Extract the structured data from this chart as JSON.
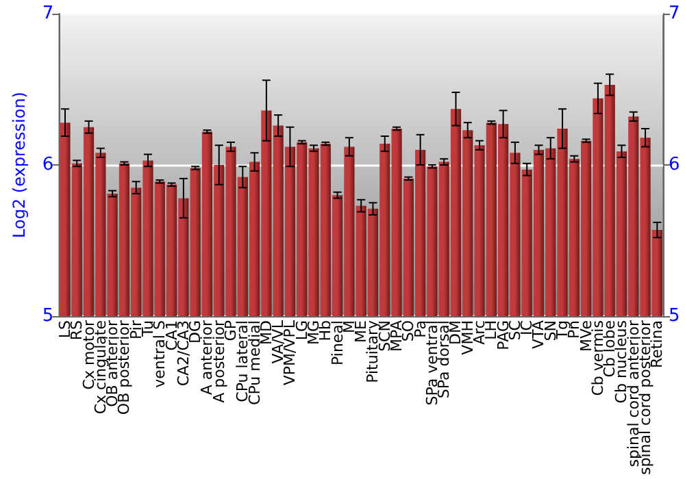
{
  "chart_data": {
    "type": "bar",
    "ylabel": "Log2 (expression)",
    "categories": [
      "LS",
      "RS",
      "Cx motor",
      "Cx cingulate",
      "OB anterior",
      "OB posterior",
      "Pir",
      "Tu",
      "ventral S",
      "CA1",
      "CA2/CA3",
      "DG",
      "A anterior",
      "A posterior",
      "GP",
      "CPu lateral",
      "CPu medial",
      "MD",
      "VA/VL",
      "VPM/VPL",
      "LG",
      "MG",
      "Hb",
      "Pineal",
      "M",
      "ME",
      "Pituitary",
      "SCN",
      "MPA",
      "SO",
      "Pa",
      "SPa ventral",
      "SPa dorsal",
      "DM",
      "VMH",
      "Arc",
      "LH",
      "PAG",
      "SC",
      "IC",
      "VTA",
      "SN",
      "Tg",
      "Pn",
      "MVe",
      "Cb vermis",
      "Cb lobe",
      "Cb nucleus",
      "spinal cord anterior",
      "spinal cord posterior",
      "Retina"
    ],
    "values": [
      6.28,
      6.01,
      6.25,
      6.08,
      5.81,
      6.01,
      5.85,
      6.03,
      5.89,
      5.87,
      5.78,
      5.98,
      6.22,
      6.0,
      6.12,
      5.92,
      6.02,
      6.36,
      6.26,
      6.12,
      6.15,
      6.11,
      6.14,
      5.8,
      6.12,
      5.73,
      5.71,
      6.14,
      6.24,
      5.91,
      6.1,
      5.99,
      6.02,
      6.37,
      6.23,
      6.13,
      6.28,
      6.27,
      6.08,
      5.97,
      6.1,
      6.11,
      6.24,
      6.04,
      6.16,
      6.44,
      6.53,
      6.09,
      6.32,
      6.18,
      5.57
    ],
    "errors": [
      0.09,
      0.02,
      0.04,
      0.03,
      0.02,
      0.01,
      0.04,
      0.04,
      0.01,
      0.01,
      0.13,
      0.01,
      0.01,
      0.13,
      0.03,
      0.07,
      0.06,
      0.2,
      0.07,
      0.13,
      0.01,
      0.02,
      0.01,
      0.02,
      0.06,
      0.04,
      0.04,
      0.05,
      0.01,
      0.01,
      0.1,
      0.01,
      0.02,
      0.11,
      0.05,
      0.03,
      0.01,
      0.09,
      0.07,
      0.04,
      0.03,
      0.07,
      0.13,
      0.02,
      0.01,
      0.1,
      0.07,
      0.04,
      0.03,
      0.06,
      0.05
    ],
    "color": "#c0393b",
    "ylim": [
      5,
      7
    ],
    "yticks": [
      5,
      6,
      7
    ],
    "y2lim": [
      5,
      7
    ],
    "y2ticks": [
      5,
      6,
      7
    ],
    "grid": "y"
  }
}
